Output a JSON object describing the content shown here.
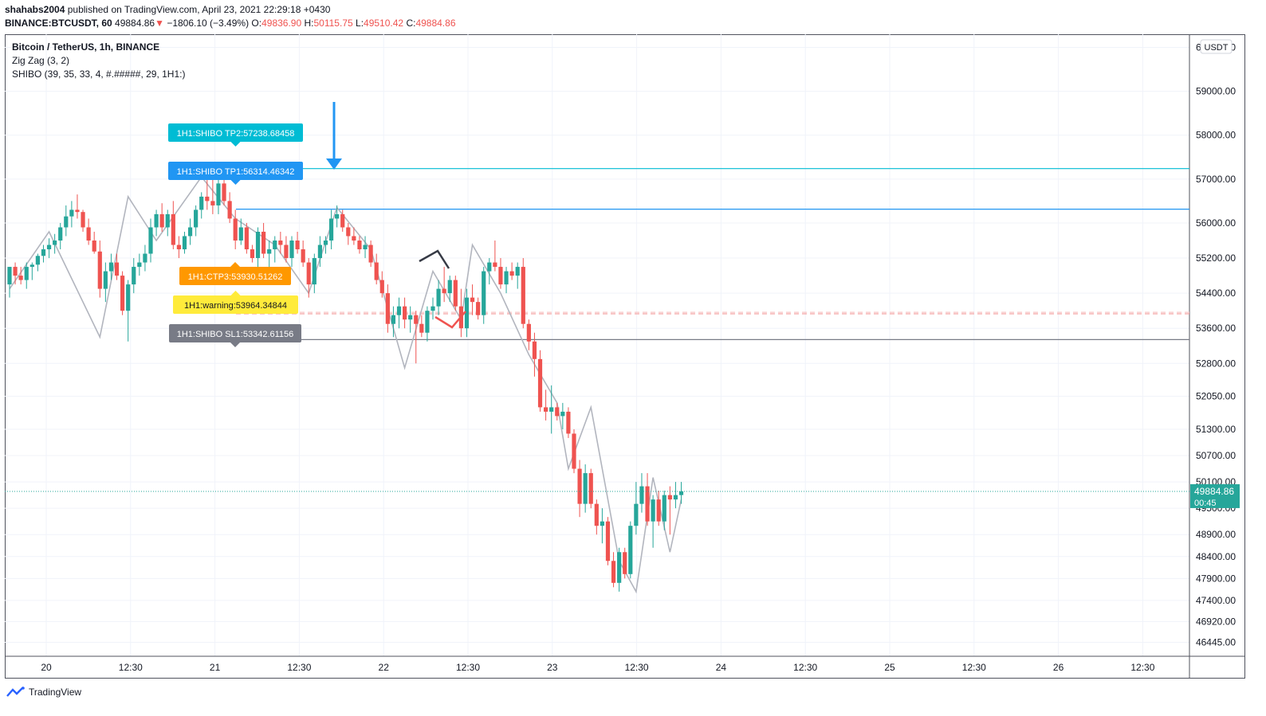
{
  "header": {
    "author": "shahabs2004",
    "published_text": "published on TradingView.com, April 23, 2021 22:29:18 +0430",
    "symbol": "BINANCE:BTCUSDT, 60",
    "last": "49884.86",
    "change_arrow": "▼",
    "change": "−1806.10 (−3.49%)",
    "o_label": "O:",
    "o": "49836.90",
    "h_label": "H:",
    "h": "50115.75",
    "l_label": "L:",
    "l": "49510.42",
    "c_label": "C:",
    "c": "49884.86"
  },
  "legend": {
    "title": "Bitcoin / TetherUS, 1h, BINANCE",
    "zigzag": "Zig Zag (3, 2)",
    "shibo": "SHIBO (39, 35, 33, 4, #.#####, 29, 1H1:)"
  },
  "footer": {
    "brand": "TradingView",
    "logo_icon": "tradingview-logo-icon"
  },
  "colors": {
    "up": "#26a69a",
    "down": "#ef5350",
    "zigzag": "#b2b5be",
    "tp2": "#00bcd4",
    "tp1": "#2196f3",
    "ctp3": "#ff9800",
    "warning": "#ffeb3b",
    "sl1": "#787b86"
  },
  "chart_data": {
    "type": "candlestick",
    "timeframe": "1h",
    "currency": "USDT",
    "ylim": [
      46200,
      60300
    ],
    "y_ticks": [
      "60000.00",
      "59000.00",
      "58000.00",
      "57000.00",
      "56000.00",
      "55200.00",
      "54400.00",
      "53600.00",
      "52800.00",
      "52050.00",
      "51300.00",
      "50700.00",
      "50100.00",
      "49500.00",
      "48900.00",
      "48400.00",
      "47900.00",
      "47400.00",
      "46920.00",
      "46445.00"
    ],
    "x_ticks": [
      "20",
      "12:30",
      "21",
      "12:30",
      "22",
      "12:30",
      "23",
      "12:30",
      "24",
      "12:30",
      "25",
      "12:30",
      "26",
      "12:30"
    ],
    "last_price": "49884.86",
    "countdown": "00:45",
    "levels": [
      {
        "name": "1H1:SHIBO TP2:57238.68458",
        "value": 57238.68,
        "style": "solid",
        "color_key": "tp2"
      },
      {
        "name": "1H1:SHIBO TP1:56314.46342",
        "value": 56314.46,
        "style": "solid",
        "color_key": "tp1"
      },
      {
        "name": "1H1:CTP3:53930.51262",
        "value": 53930.51,
        "style": "dashed",
        "color_key": "ctp3"
      },
      {
        "name": "1H1:warning:53964.34844",
        "value": 53964.35,
        "style": "dashed",
        "color_key": "warning"
      },
      {
        "name": "1H1:SHIBO SL1:53342.61156",
        "value": 53342.61,
        "style": "solid",
        "color_key": "sl1"
      }
    ],
    "candles": [
      [
        54600,
        55000,
        54300,
        55000
      ],
      [
        55000,
        55100,
        54600,
        54800
      ],
      [
        54800,
        55000,
        54600,
        54700
      ],
      [
        54700,
        55100,
        54500,
        55000
      ],
      [
        55000,
        55100,
        54700,
        55050
      ],
      [
        55050,
        55300,
        54900,
        55250
      ],
      [
        55250,
        55500,
        55100,
        55400
      ],
      [
        55400,
        55650,
        55200,
        55500
      ],
      [
        55500,
        55750,
        55300,
        55600
      ],
      [
        55600,
        56000,
        55400,
        55900
      ],
      [
        55900,
        56400,
        55700,
        56150
      ],
      [
        56150,
        56500,
        55900,
        56300
      ],
      [
        56300,
        56650,
        56100,
        56250
      ],
      [
        56250,
        56300,
        55800,
        55900
      ],
      [
        55900,
        56100,
        55500,
        55600
      ],
      [
        55600,
        55800,
        55300,
        55350
      ],
      [
        55350,
        55600,
        54300,
        54500
      ],
      [
        54500,
        55100,
        54200,
        54900
      ],
      [
        54900,
        55300,
        54700,
        55100
      ],
      [
        55100,
        55300,
        54700,
        54800
      ],
      [
        54800,
        54900,
        53900,
        54000
      ],
      [
        54000,
        54700,
        53300,
        54600
      ],
      [
        54600,
        55200,
        54400,
        55000
      ],
      [
        55000,
        55300,
        54800,
        55100
      ],
      [
        55100,
        55500,
        54900,
        55300
      ],
      [
        55300,
        56100,
        55100,
        55900
      ],
      [
        55900,
        56300,
        55700,
        56200
      ],
      [
        56200,
        56450,
        55800,
        55900
      ],
      [
        55900,
        56300,
        55700,
        56200
      ],
      [
        56200,
        56500,
        55400,
        55500
      ],
      [
        55500,
        55700,
        55200,
        55400
      ],
      [
        55400,
        55800,
        55300,
        55700
      ],
      [
        55700,
        56100,
        55500,
        55900
      ],
      [
        55900,
        56400,
        55700,
        56300
      ],
      [
        56300,
        56700,
        56100,
        56600
      ],
      [
        56600,
        57200,
        56300,
        56500
      ],
      [
        56500,
        57000,
        56200,
        56400
      ],
      [
        56400,
        57100,
        56200,
        56900
      ],
      [
        56900,
        57000,
        56400,
        56500
      ],
      [
        56500,
        56700,
        56000,
        56100
      ],
      [
        56100,
        56300,
        55400,
        55600
      ],
      [
        55600,
        56100,
        55500,
        55900
      ],
      [
        55900,
        56000,
        55300,
        55400
      ],
      [
        55400,
        55500,
        55100,
        55200
      ],
      [
        55200,
        55900,
        55000,
        55800
      ],
      [
        55800,
        56000,
        55200,
        55300
      ],
      [
        55300,
        55600,
        55000,
        55400
      ],
      [
        55400,
        55700,
        55100,
        55600
      ],
      [
        55600,
        55800,
        55300,
        55500
      ],
      [
        55500,
        55700,
        55100,
        55200
      ],
      [
        55200,
        55700,
        55000,
        55600
      ],
      [
        55600,
        55800,
        55300,
        55400
      ],
      [
        55400,
        55600,
        55000,
        55100
      ],
      [
        55100,
        55200,
        54300,
        54600
      ],
      [
        54600,
        55300,
        54400,
        55200
      ],
      [
        55200,
        55700,
        55000,
        55500
      ],
      [
        55500,
        55700,
        55300,
        55600
      ],
      [
        55600,
        56300,
        55400,
        56100
      ],
      [
        56100,
        56400,
        55900,
        56200
      ],
      [
        56200,
        56300,
        55800,
        55900
      ],
      [
        55900,
        56000,
        55500,
        55700
      ],
      [
        55700,
        55900,
        55500,
        55600
      ],
      [
        55600,
        55700,
        55300,
        55400
      ],
      [
        55400,
        55700,
        55200,
        55500
      ],
      [
        55500,
        55600,
        55000,
        55100
      ],
      [
        55100,
        55300,
        54600,
        54700
      ],
      [
        54700,
        54900,
        54300,
        54400
      ],
      [
        54400,
        54600,
        53500,
        53700
      ],
      [
        53700,
        54100,
        53400,
        53900
      ],
      [
        53900,
        54300,
        53600,
        54100
      ],
      [
        54100,
        54300,
        53600,
        53800
      ],
      [
        53800,
        54100,
        53500,
        53900
      ],
      [
        53900,
        54000,
        52800,
        53700
      ],
      [
        53700,
        53900,
        53400,
        53500
      ],
      [
        53500,
        54100,
        53300,
        54000
      ],
      [
        54000,
        54300,
        53800,
        54100
      ],
      [
        54100,
        54700,
        53900,
        54500
      ],
      [
        54500,
        55000,
        54200,
        54400
      ],
      [
        54400,
        54800,
        54200,
        54700
      ],
      [
        54700,
        54800,
        54000,
        54100
      ],
      [
        54100,
        54500,
        53400,
        53600
      ],
      [
        53600,
        54500,
        53400,
        54300
      ],
      [
        54300,
        54600,
        53900,
        54200
      ],
      [
        54200,
        54300,
        53800,
        53900
      ],
      [
        53900,
        55000,
        53700,
        54900
      ],
      [
        54900,
        55200,
        54600,
        55100
      ],
      [
        55100,
        55600,
        54900,
        55000
      ],
      [
        55000,
        55200,
        54500,
        54600
      ],
      [
        54600,
        55000,
        54400,
        54900
      ],
      [
        54900,
        55100,
        54700,
        54800
      ],
      [
        54800,
        55100,
        54500,
        55000
      ],
      [
        55000,
        55200,
        53600,
        53700
      ],
      [
        53700,
        53800,
        53100,
        53300
      ],
      [
        53300,
        53500,
        52500,
        52900
      ],
      [
        52900,
        53100,
        51700,
        51800
      ],
      [
        51800,
        52200,
        51500,
        51700
      ],
      [
        51700,
        52300,
        51200,
        51800
      ],
      [
        51800,
        51900,
        51500,
        51600
      ],
      [
        51600,
        51900,
        51300,
        51700
      ],
      [
        51700,
        51800,
        51100,
        51200
      ],
      [
        51200,
        51300,
        50300,
        50400
      ],
      [
        50400,
        50600,
        49300,
        49600
      ],
      [
        49600,
        50500,
        49400,
        50300
      ],
      [
        50300,
        50400,
        49500,
        49600
      ],
      [
        49600,
        49700,
        48900,
        49100
      ],
      [
        49100,
        49500,
        48700,
        49200
      ],
      [
        49200,
        49300,
        48200,
        48300
      ],
      [
        48300,
        48500,
        47700,
        47800
      ],
      [
        47800,
        48600,
        47600,
        48500
      ],
      [
        48500,
        48600,
        47900,
        48000
      ],
      [
        48000,
        49200,
        47900,
        49100
      ],
      [
        49100,
        50100,
        48900,
        49600
      ],
      [
        49600,
        50300,
        49400,
        50000
      ],
      [
        50000,
        50300,
        49100,
        49200
      ],
      [
        49200,
        49800,
        48600,
        49700
      ],
      [
        49700,
        49900,
        49100,
        49200
      ],
      [
        49200,
        49900,
        49000,
        49800
      ],
      [
        49800,
        50000,
        48900,
        49700
      ],
      [
        49700,
        50100,
        49500,
        49800
      ],
      [
        49800,
        50100,
        49600,
        49884
      ]
    ],
    "zigzag": [
      [
        0,
        54500
      ],
      [
        7,
        55800
      ],
      [
        16,
        53400
      ],
      [
        21,
        56600
      ],
      [
        26,
        55600
      ],
      [
        34,
        57050
      ],
      [
        40,
        56100
      ],
      [
        47,
        55500
      ],
      [
        53,
        54400
      ],
      [
        58,
        56350
      ],
      [
        64,
        55400
      ],
      [
        70,
        52700
      ],
      [
        75,
        54900
      ],
      [
        80,
        53800
      ],
      [
        82,
        55500
      ],
      [
        87,
        54400
      ],
      [
        92,
        53000
      ],
      [
        97,
        51900
      ],
      [
        99,
        50400
      ],
      [
        103,
        51800
      ],
      [
        108,
        48300
      ],
      [
        111,
        47600
      ],
      [
        114,
        50200
      ],
      [
        117,
        48500
      ],
      [
        119,
        49700
      ]
    ]
  }
}
